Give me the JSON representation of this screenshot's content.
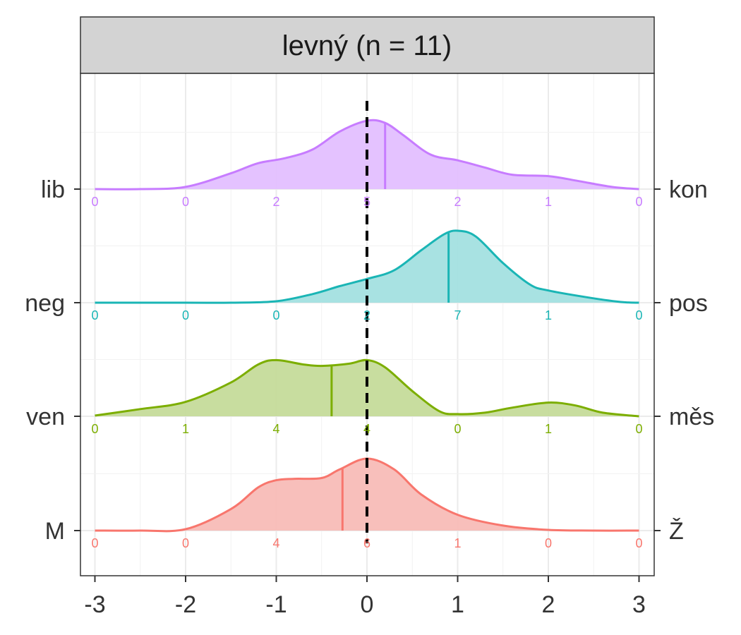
{
  "chart_data": {
    "type": "ridgeline",
    "title": "levný (n = 11)",
    "xlim": [
      -3,
      3
    ],
    "x_ticks": [
      "-3",
      "-2",
      "-1",
      "0",
      "1",
      "2",
      "3"
    ],
    "x_tick_values": [
      -3,
      -2,
      -1,
      0,
      1,
      2,
      3
    ],
    "reference_line_x": 0,
    "grid": true,
    "count_positions": [
      -3,
      -2,
      -1,
      0,
      1,
      2,
      3
    ],
    "series": [
      {
        "left_label": "M",
        "right_label": "Ž",
        "color": "#F8766D",
        "fill": "#F8BCB7",
        "mean": -0.27,
        "counts": [
          "0",
          "0",
          "4",
          "6",
          "1",
          "0",
          "0"
        ],
        "density": [
          [
            -3,
            0
          ],
          [
            -2.5,
            0
          ],
          [
            -2,
            0.02
          ],
          [
            -1.5,
            0.3
          ],
          [
            -1.2,
            0.6
          ],
          [
            -1,
            0.7
          ],
          [
            -0.8,
            0.72
          ],
          [
            -0.5,
            0.73
          ],
          [
            -0.3,
            0.85
          ],
          [
            0,
            1.0
          ],
          [
            0.3,
            0.85
          ],
          [
            0.6,
            0.5
          ],
          [
            1,
            0.22
          ],
          [
            1.5,
            0.07
          ],
          [
            2,
            0.01
          ],
          [
            2.5,
            0
          ],
          [
            3,
            0
          ]
        ]
      },
      {
        "left_label": "ven",
        "right_label": "měs",
        "color": "#7CAE00",
        "fill": "#C5DB9A",
        "mean": -0.39,
        "counts": [
          "0",
          "1",
          "4",
          "4",
          "0",
          "1",
          "0"
        ],
        "density": [
          [
            -3,
            0.01
          ],
          [
            -2.5,
            0.1
          ],
          [
            -2,
            0.2
          ],
          [
            -1.5,
            0.47
          ],
          [
            -1.2,
            0.72
          ],
          [
            -1,
            0.78
          ],
          [
            -0.7,
            0.72
          ],
          [
            -0.5,
            0.7
          ],
          [
            -0.2,
            0.73
          ],
          [
            0,
            0.78
          ],
          [
            0.2,
            0.68
          ],
          [
            0.5,
            0.35
          ],
          [
            0.8,
            0.07
          ],
          [
            1,
            0.03
          ],
          [
            1.3,
            0.05
          ],
          [
            1.6,
            0.12
          ],
          [
            2,
            0.19
          ],
          [
            2.3,
            0.15
          ],
          [
            2.6,
            0.05
          ],
          [
            3,
            0
          ]
        ]
      },
      {
        "left_label": "neg",
        "right_label": "pos",
        "color": "#1AB5B5",
        "fill": "#A3E0E0",
        "mean": 0.9,
        "counts": [
          "0",
          "0",
          "0",
          "2",
          "7",
          "1",
          "0"
        ],
        "density": [
          [
            -3,
            0
          ],
          [
            -2,
            0
          ],
          [
            -1.5,
            0
          ],
          [
            -1,
            0.02
          ],
          [
            -0.6,
            0.12
          ],
          [
            -0.3,
            0.23
          ],
          [
            0,
            0.33
          ],
          [
            0.3,
            0.45
          ],
          [
            0.6,
            0.73
          ],
          [
            0.85,
            0.95
          ],
          [
            1,
            1.0
          ],
          [
            1.2,
            0.92
          ],
          [
            1.5,
            0.55
          ],
          [
            1.8,
            0.25
          ],
          [
            2,
            0.17
          ],
          [
            2.4,
            0.08
          ],
          [
            2.8,
            0.01
          ],
          [
            3,
            0
          ]
        ]
      },
      {
        "left_label": "lib",
        "right_label": "kon",
        "color": "#C77CFF",
        "fill": "#E3BFFF",
        "mean": 0.2,
        "counts": [
          "0",
          "0",
          "2",
          "5",
          "2",
          "1",
          "0"
        ],
        "density": [
          [
            -3,
            0
          ],
          [
            -2.5,
            0
          ],
          [
            -2,
            0.03
          ],
          [
            -1.5,
            0.22
          ],
          [
            -1.2,
            0.36
          ],
          [
            -0.9,
            0.43
          ],
          [
            -0.6,
            0.55
          ],
          [
            -0.3,
            0.8
          ],
          [
            0,
            0.95
          ],
          [
            0.2,
            0.92
          ],
          [
            0.4,
            0.75
          ],
          [
            0.7,
            0.48
          ],
          [
            1,
            0.4
          ],
          [
            1.3,
            0.3
          ],
          [
            1.6,
            0.2
          ],
          [
            2,
            0.18
          ],
          [
            2.3,
            0.12
          ],
          [
            2.7,
            0.03
          ],
          [
            3,
            0
          ]
        ]
      }
    ]
  }
}
